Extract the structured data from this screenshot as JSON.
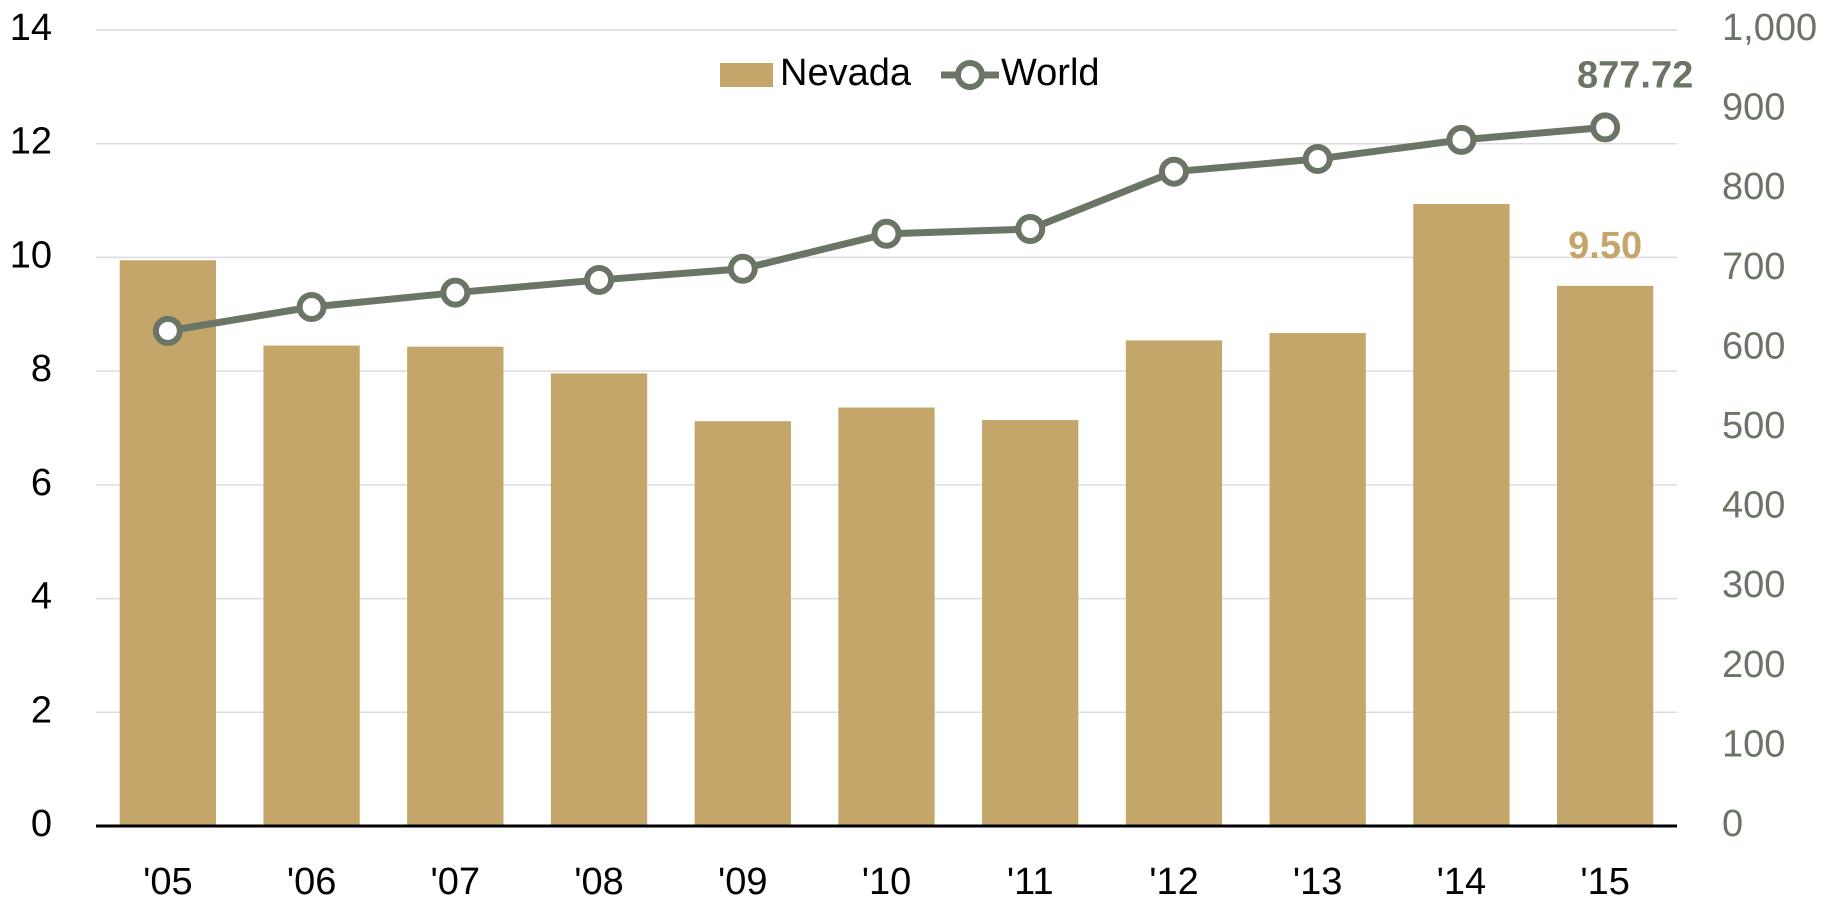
{
  "chart_data": {
    "type": "bar-line",
    "categories": [
      "'05",
      "'06",
      "'07",
      "'08",
      "'09",
      "'10",
      "'11",
      "'12",
      "'13",
      "'14",
      "'15"
    ],
    "series": [
      {
        "name": "Nevada",
        "type": "bar",
        "color": "#c4a66a",
        "values": [
          9.95,
          8.45,
          8.43,
          7.96,
          7.12,
          7.36,
          7.14,
          8.54,
          8.67,
          10.94,
          9.5
        ],
        "value_labels": [
          null,
          null,
          null,
          null,
          null,
          null,
          null,
          null,
          null,
          null,
          "9.50"
        ]
      },
      {
        "name": "World",
        "type": "line",
        "axis": "y2",
        "color": "#6b7566",
        "values": [
          622,
          652,
          670,
          686,
          700,
          744,
          750,
          822,
          838,
          862,
          877.72
        ],
        "value_labels": [
          null,
          null,
          null,
          null,
          null,
          null,
          null,
          null,
          null,
          null,
          "877.72"
        ]
      }
    ],
    "ylim": [
      0,
      14
    ],
    "yticks": [
      0,
      2,
      4,
      6,
      8,
      10,
      12,
      14
    ],
    "y2lim": [
      0,
      1000
    ],
    "y2ticks": [
      0,
      100,
      200,
      300,
      400,
      500,
      600,
      700,
      800,
      900,
      {
        "value": 1000,
        "label": "1,000"
      }
    ],
    "grid": true,
    "legend": "top"
  }
}
